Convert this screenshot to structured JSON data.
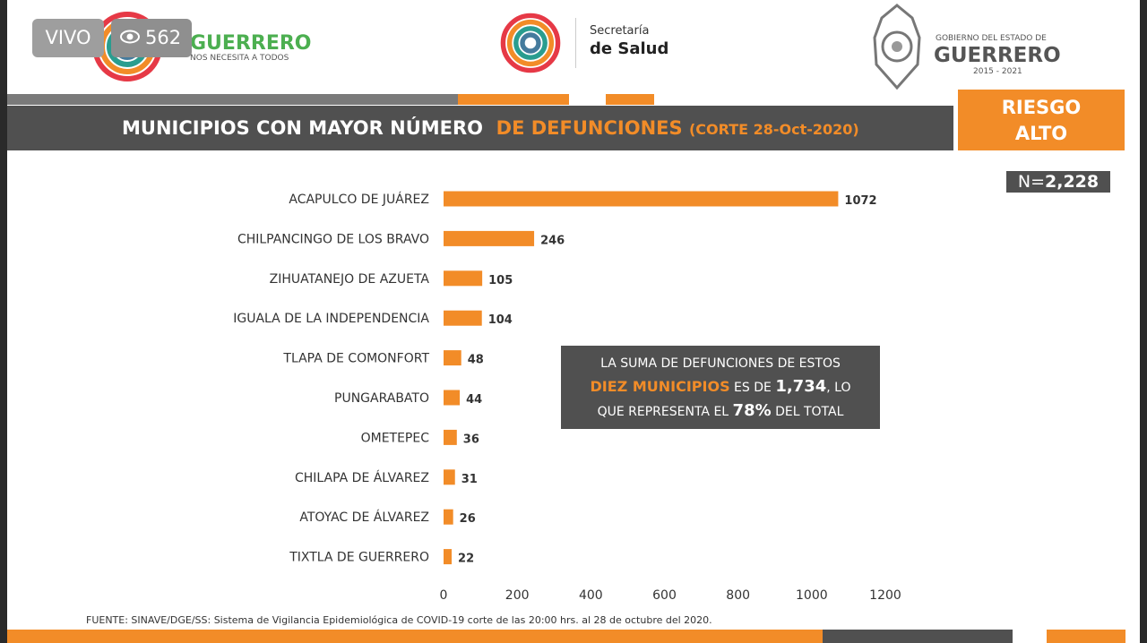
{
  "live": {
    "label": "VIVO",
    "views": "562"
  },
  "logos": {
    "left_title": "GUERRERO",
    "left_sub": "NOS NECESITA A TODOS",
    "center_line1": "Secretaría",
    "center_line2": "de Salud",
    "right_line1": "GOBIERNO DEL ESTADO DE",
    "right_line2": "GUERRERO",
    "right_line3": "2015 - 2021"
  },
  "header": {
    "title_part1": "MUNICIPIOS CON MAYOR NÚMERO",
    "title_part2": "DE  DEFUNCIONES",
    "title_part3": "(CORTE  28-Oct-2020)",
    "risk_line1": "RIESGO",
    "risk_line2": "ALTO",
    "n_prefix": "N=",
    "n_value": "2,228"
  },
  "note": {
    "line1": "LA SUMA DE DEFUNCIONES DE ESTOS",
    "highlight": "DIEZ MUNICIPIOS",
    "mid": "ES DE",
    "sum": "1,734",
    "after_sum": ", LO",
    "line3_pre": "QUE REPRESENTA EL",
    "percent": "78%",
    "line3_post": "DEL TOTAL"
  },
  "source": "FUENTE: SINAVE/DGE/SS: Sistema de Vigilancia Epidemiológica de COVID-19 corte de las 20:00 hrs. al 28  de  octubre del 2020.",
  "colors": {
    "accent": "#f28c28",
    "dark": "#505050"
  },
  "chart_data": {
    "type": "bar",
    "orientation": "horizontal",
    "categories": [
      "ACAPULCO DE JUÁREZ",
      "CHILPANCINGO DE LOS BRAVO",
      "ZIHUATANEJO DE AZUETA",
      "IGUALA DE LA INDEPENDENCIA",
      "TLAPA DE COMONFORT",
      "PUNGARABATO",
      "OMETEPEC",
      "CHILAPA DE ÁLVAREZ",
      "ATOYAC DE ÁLVAREZ",
      "TIXTLA DE  GUERRERO"
    ],
    "values": [
      1072,
      246,
      105,
      104,
      48,
      44,
      36,
      31,
      26,
      22
    ],
    "xlim": [
      0,
      1200
    ],
    "xticks": [
      0,
      200,
      400,
      600,
      800,
      1000,
      1200
    ],
    "bar_color": "#f28c28",
    "grid": false
  }
}
